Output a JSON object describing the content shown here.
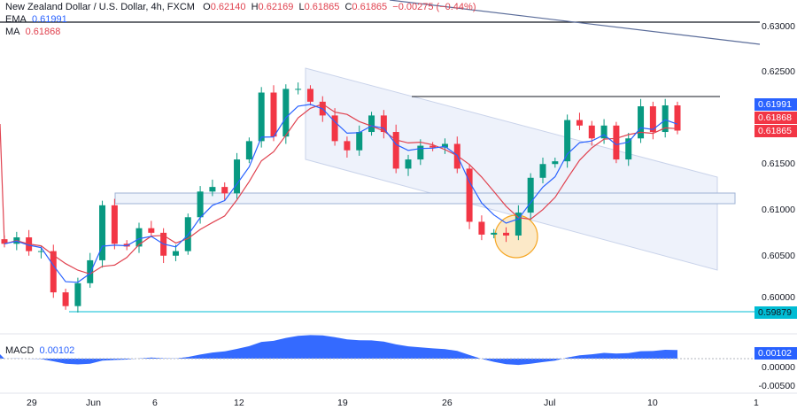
{
  "header": {
    "title": "New Zealand Dollar / U.S. Dollar, 4h, FXCM",
    "o_label": "O",
    "o": "0.62140",
    "h_label": "H",
    "h": "0.62169",
    "l_label": "L",
    "l": "0.61865",
    "c_label": "C",
    "c": "0.61865",
    "change": "−0.00275 (−0.44%)"
  },
  "indicators": {
    "ema_label": "EMA",
    "ema": "0.61991",
    "ma_label": "MA",
    "ma": "0.61868",
    "macd_label": "MACD",
    "macd": "0.00102"
  },
  "price_axis": [
    "0.63000",
    "0.62500",
    "0.61500",
    "0.61000",
    "0.60500",
    "0.60000"
  ],
  "price_tags": {
    "ema": "0.61991",
    "ma": "0.61868",
    "close": "0.61865",
    "support": "0.59879",
    "macd": "0.00102"
  },
  "macd_axis": [
    "0.00000",
    "-0.00500"
  ],
  "time_axis": [
    "29",
    "Jun",
    "6",
    "12",
    "19",
    "26",
    "Jul",
    "10",
    "1"
  ],
  "colors": {
    "up": "#089981",
    "down": "#f23645",
    "ema": "#2962ff",
    "ma": "#e0424f",
    "macd": "#2962ff",
    "support": "#00bcd4",
    "highlight": "#f5a623"
  },
  "chart_data": {
    "type": "candlestick",
    "ylim": [
      0.5965,
      0.6335
    ],
    "close": [
      0.6063,
      0.607,
      0.6055,
      0.6055,
      0.601,
      0.5995,
      0.602,
      0.6045,
      0.6105,
      0.6063,
      0.606,
      0.608,
      0.6075,
      0.605,
      0.6055,
      0.6092,
      0.612,
      0.6125,
      0.6118,
      0.6155,
      0.6175,
      0.6228,
      0.618,
      0.6232,
      0.6232,
      0.6218,
      0.6203,
      0.6175,
      0.6165,
      0.6185,
      0.6203,
      0.6185,
      0.6145,
      0.6155,
      0.617,
      0.6168,
      0.6172,
      0.6145,
      0.6087,
      0.6073,
      0.6075,
      0.6072,
      0.6097,
      0.6135,
      0.615,
      0.6153,
      0.6198,
      0.6192,
      0.6178,
      0.6192,
      0.6155,
      0.6178,
      0.6213,
      0.6185,
      0.6214,
      0.61865
    ]
  }
}
